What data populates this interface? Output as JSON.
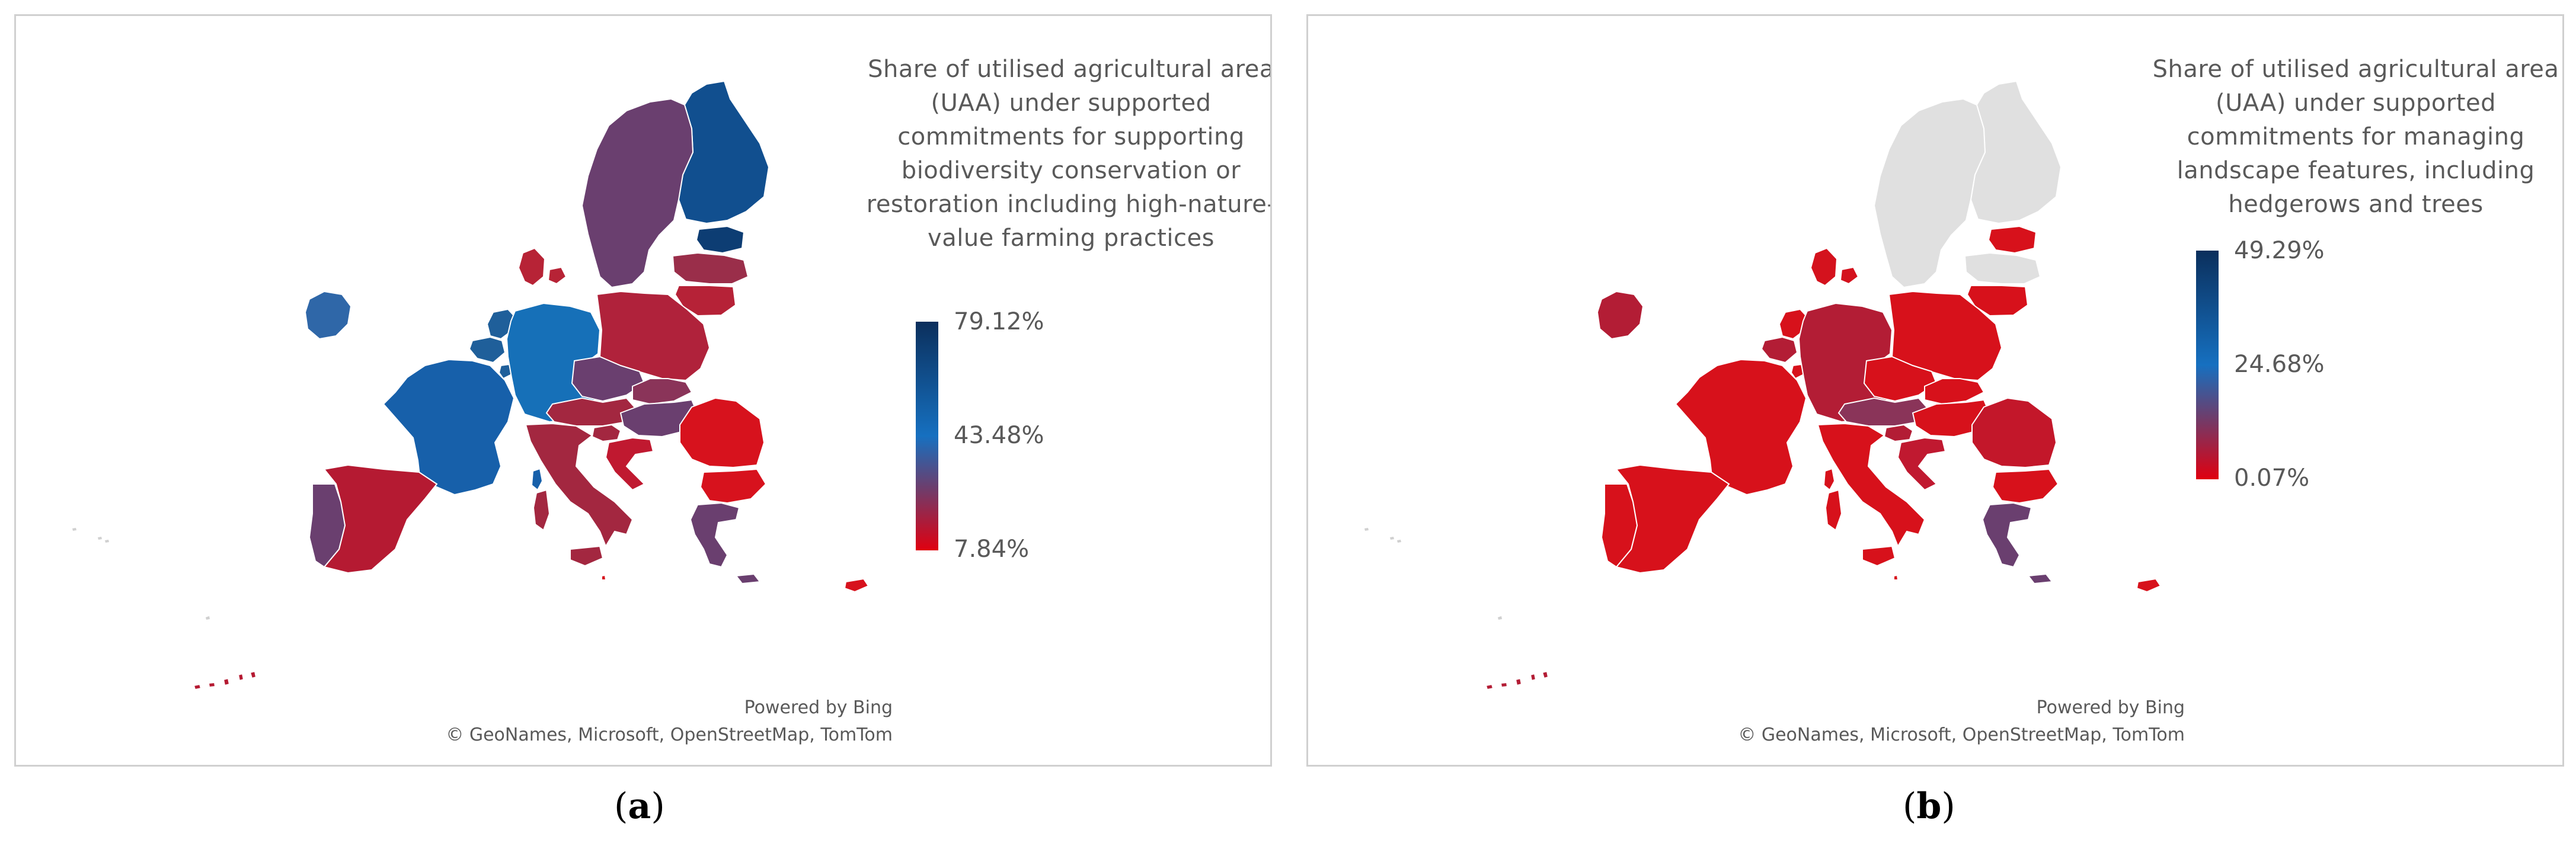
{
  "panels": [
    {
      "id": "a",
      "caption_open": "(",
      "caption_letter": "a",
      "caption_close": ")",
      "legend_title": "Share of utilised agricultural area (UAA) under supported commitments for supporting biodiversity conservation or restoration including high-nature-value farming practices",
      "legend_max": "79.12%",
      "legend_mid": "43.48%",
      "legend_min": "7.84%",
      "credit_bing": "Powered by Bing",
      "credit_sources": "© GeoNames, Microsoft, OpenStreetMap, TomTom",
      "colors": {
        "Finland": "#114f8f",
        "Estonia": "#0d3d73",
        "Sweden": "#6a3f6f",
        "Latvia": "#9a2e4a",
        "Lithuania": "#b62237",
        "Denmark": "#b72336",
        "Ireland": "#2f67a8",
        "Netherlands": "#1f5f9a",
        "Belgium": "#1f5f9a",
        "Luxembourg": "#1f5f9a",
        "Germany": "#1670b8",
        "Poland": "#b0223b",
        "Czechia": "#6a3f6f",
        "Slovakia": "#8a3459",
        "Austria": "#a32740",
        "Hungary": "#6a3f6f",
        "Slovenia": "#a32740",
        "Croatia": "#c01930",
        "Romania": "#d7121d",
        "Bulgaria": "#d7121d",
        "France": "#1760aa",
        "Spain": "#b51a32",
        "Portugal": "#6a3f6f",
        "Italy": "#a32740",
        "Greece": "#6a3f6f",
        "Cyprus": "#d7121d",
        "Malta": "#d7121d",
        "Corsica": "#1760aa",
        "Sardinia": "#a32740",
        "Sicily": "#a32740",
        "Canaries": "#b51a32"
      }
    },
    {
      "id": "b",
      "caption_open": "(",
      "caption_letter": "b",
      "caption_close": ")",
      "legend_title": "Share of utilised agricultural area (UAA) under supported commitments for managing landscape features, including hedgerows and trees",
      "legend_max": "49.29%",
      "legend_mid": "24.68%",
      "legend_min": "0.07%",
      "credit_bing": "Powered by Bing",
      "credit_sources": "© GeoNames, Microsoft, OpenStreetMap, TomTom",
      "colors": {
        "Finland": "#e0e0e0",
        "Estonia": "#d7111b",
        "Sweden": "#e0e0e0",
        "Latvia": "#e0e0e0",
        "Lithuania": "#d7111b",
        "Denmark": "#d4121d",
        "Ireland": "#b31d35",
        "Netherlands": "#d7111b",
        "Belgium": "#b31d35",
        "Luxembourg": "#d7111b",
        "Germany": "#b31d35",
        "Poland": "#d7111b",
        "Czechia": "#d7111b",
        "Slovakia": "#d7111b",
        "Austria": "#8a3459",
        "Hungary": "#d7111b",
        "Slovenia": "#b31d35",
        "Croatia": "#c01930",
        "Romania": "#c3172a",
        "Bulgaria": "#d7111b",
        "France": "#d7111b",
        "Spain": "#d7111b",
        "Portugal": "#d7111b",
        "Italy": "#d7111b",
        "Greece": "#6a3f6f",
        "Cyprus": "#d7111b",
        "Malta": "#d7111b",
        "Corsica": "#d7111b",
        "Sardinia": "#d7111b",
        "Sicily": "#d7111b",
        "Canaries": "#b31d35"
      }
    }
  ]
}
